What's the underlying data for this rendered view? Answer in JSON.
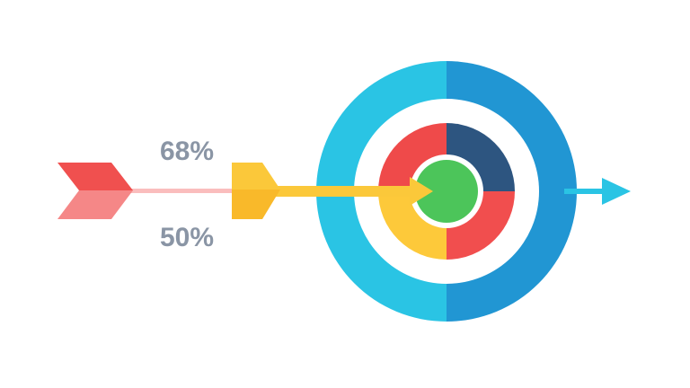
{
  "labels": [
    "68%",
    "50%"
  ]
}
